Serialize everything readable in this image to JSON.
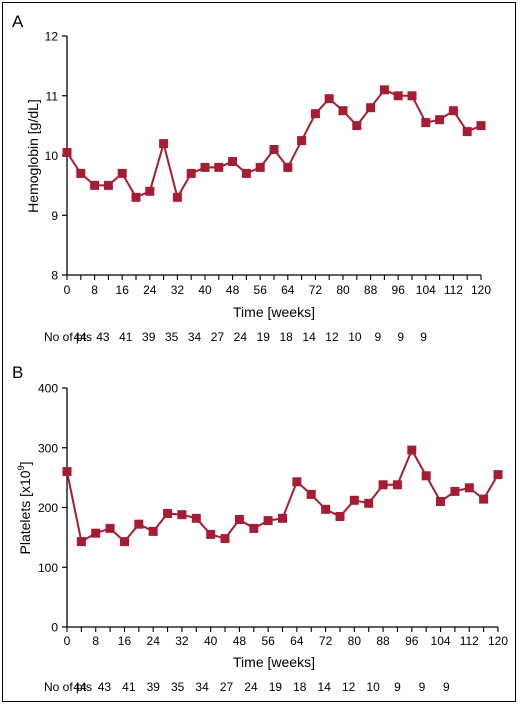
{
  "colors": {
    "series": "#a51d35",
    "axis": "#000000"
  },
  "chart_data": [
    {
      "type": "line",
      "panel_label": "A",
      "ylabel": "Hemoglobin [g/dL]",
      "xlabel": "Time [weeks]",
      "ylim": [
        8,
        12
      ],
      "xlim": [
        0,
        120
      ],
      "yticks": [
        "8",
        "9",
        "10",
        "11",
        "12"
      ],
      "xticks": [
        "0",
        "8",
        "16",
        "24",
        "32",
        "40",
        "48",
        "56",
        "64",
        "72",
        "80",
        "88",
        "96",
        "104",
        "112",
        "120"
      ],
      "grid": false,
      "marker": "square",
      "x": [
        0,
        4,
        8,
        12,
        16,
        20,
        24,
        28,
        32,
        36,
        40,
        44,
        48,
        52,
        56,
        60,
        64,
        68,
        72,
        76,
        80,
        84,
        88,
        92,
        96,
        100,
        104,
        108,
        112,
        116,
        120
      ],
      "y": [
        10.05,
        9.7,
        9.5,
        9.5,
        9.7,
        9.3,
        9.4,
        10.2,
        9.3,
        9.7,
        9.8,
        9.8,
        9.9,
        9.7,
        9.8,
        10.1,
        9.8,
        10.25,
        10.7,
        10.95,
        10.75,
        10.5,
        10.8,
        11.1,
        11.0,
        11.0,
        10.55,
        10.6,
        10.75,
        10.4,
        10.5
      ],
      "patients": {
        "label": "No of pts",
        "values": [
          "44",
          "43",
          "41",
          "39",
          "35",
          "34",
          "27",
          "24",
          "19",
          "18",
          "14",
          "12",
          "10",
          "9",
          "9",
          "9"
        ]
      }
    },
    {
      "type": "line",
      "panel_label": "B",
      "ylabel": "Platelets [x10",
      "ylabel_sup": "9",
      "ylabel_end": "]",
      "xlabel": "Time [weeks]",
      "ylim": [
        0,
        400
      ],
      "xlim": [
        0,
        120
      ],
      "yticks": [
        "0",
        "100",
        "200",
        "300",
        "400"
      ],
      "xticks": [
        "0",
        "8",
        "16",
        "24",
        "32",
        "40",
        "48",
        "56",
        "64",
        "72",
        "80",
        "88",
        "96",
        "104",
        "112",
        "120"
      ],
      "grid": false,
      "marker": "square",
      "x": [
        0,
        4,
        8,
        12,
        16,
        20,
        24,
        28,
        32,
        36,
        40,
        44,
        48,
        52,
        56,
        60,
        64,
        68,
        72,
        76,
        80,
        84,
        88,
        92,
        96,
        100,
        104,
        108,
        112,
        116,
        120
      ],
      "y": [
        260,
        143,
        157,
        165,
        143,
        172,
        160,
        190,
        188,
        182,
        155,
        148,
        180,
        165,
        178,
        182,
        243,
        222,
        197,
        185,
        212,
        207,
        238,
        238,
        296,
        253,
        210,
        227,
        233,
        214,
        255
      ],
      "patients": {
        "label": "No of pts",
        "values": [
          "44",
          "43",
          "41",
          "39",
          "35",
          "34",
          "27",
          "24",
          "19",
          "18",
          "14",
          "12",
          "10",
          "9",
          "9",
          "9"
        ]
      }
    }
  ]
}
